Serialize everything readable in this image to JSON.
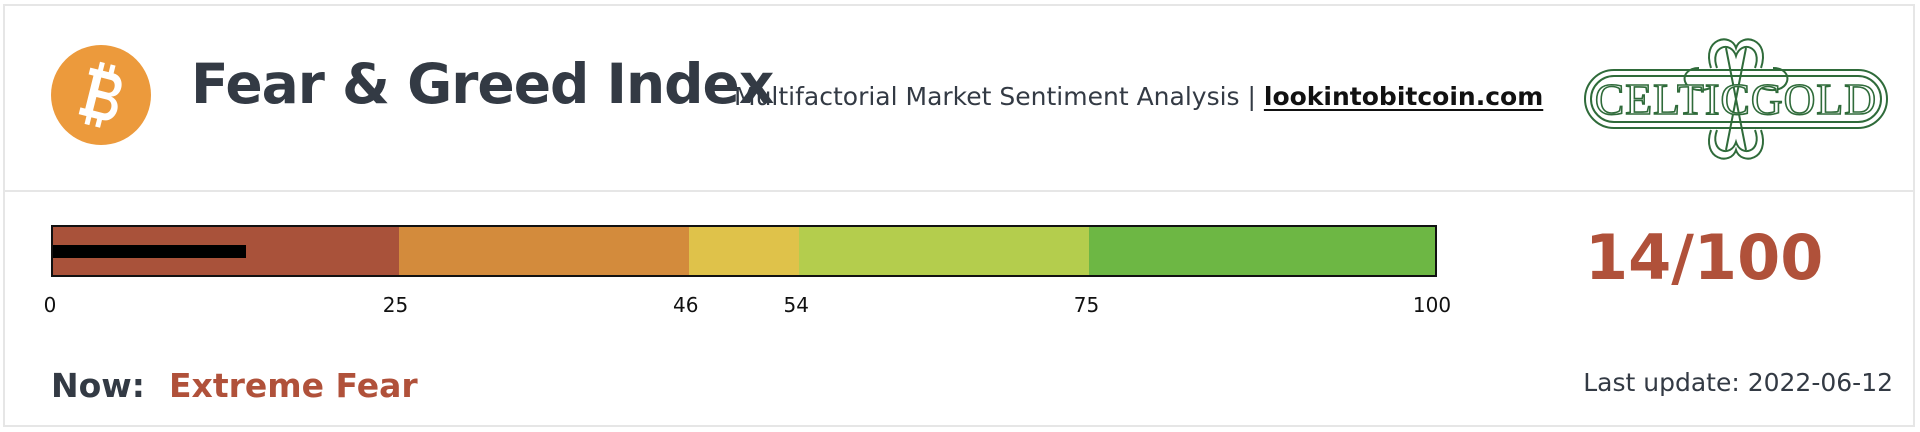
{
  "header": {
    "title": "Fear & Greed Index",
    "subtitle_prefix": "Multifactorial Market Sentiment Analysis | ",
    "subtitle_link": "lookintobitcoin.com",
    "logo_icon": "bitcoin-icon",
    "partner_logo": "CELTICGOLD"
  },
  "gauge": {
    "min": 0,
    "max": 100,
    "value": 14,
    "needle_color": "#000000",
    "segments": [
      {
        "from": 0,
        "to": 25,
        "color": "#a9523a"
      },
      {
        "from": 25,
        "to": 46,
        "color": "#d38b3c"
      },
      {
        "from": 46,
        "to": 54,
        "color": "#dfc24a"
      },
      {
        "from": 54,
        "to": 75,
        "color": "#b4cd4d"
      },
      {
        "from": 75,
        "to": 100,
        "color": "#6db744"
      }
    ],
    "ticks": [
      "0",
      "25",
      "46",
      "54",
      "75",
      "100"
    ]
  },
  "score_text": "14/100",
  "status": {
    "label": "Now:",
    "value": "Extreme Fear",
    "value_color": "#b0513a"
  },
  "last_update": "Last update: 2022-06-12"
}
